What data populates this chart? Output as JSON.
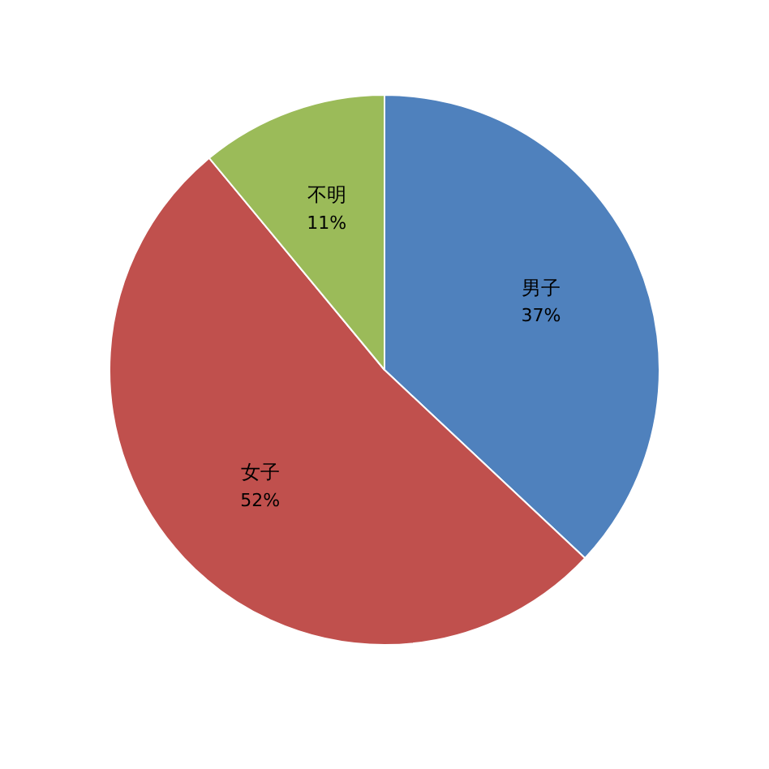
{
  "chart_data": {
    "type": "pie",
    "categories": [
      "男子",
      "女子",
      "不明"
    ],
    "values": [
      37,
      52,
      11
    ],
    "colors": [
      "#4f81bd",
      "#c0504d",
      "#9bbb59"
    ],
    "value_labels": [
      "37%",
      "52%",
      "11%"
    ],
    "legend": false
  }
}
